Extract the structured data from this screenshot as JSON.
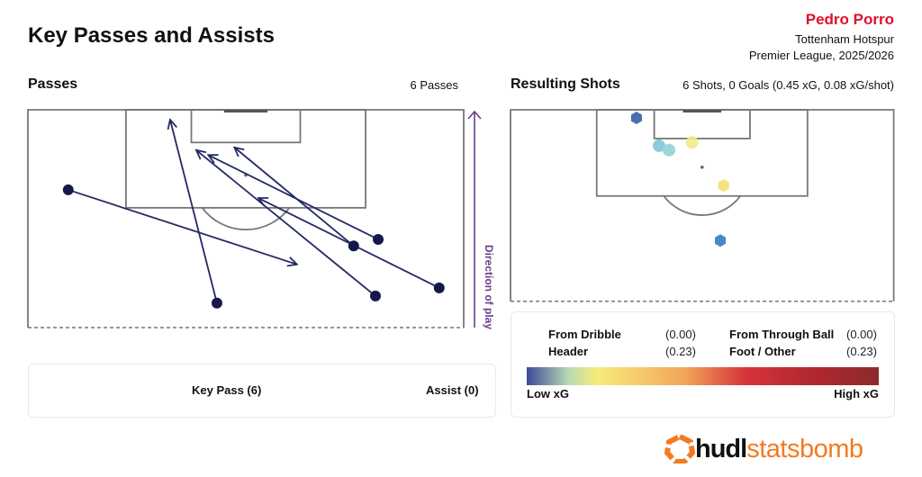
{
  "header": {
    "title": "Key Passes and Assists",
    "player": "Pedro Porro",
    "team": "Tottenham Hotspur",
    "competition": "Premier League, 2025/2026"
  },
  "passes_panel": {
    "title": "Passes",
    "count_label": "6 Passes",
    "direction_label": "Direction of play"
  },
  "shots_panel": {
    "title": "Resulting Shots",
    "summary": "6 Shots, 0 Goals (0.45 xG, 0.08 xG/shot)"
  },
  "pass_legend": {
    "key_pass": "Key Pass (6)",
    "assist": "Assist (0)"
  },
  "shot_legend": {
    "items": [
      {
        "label": "From Dribble",
        "value": "(0.00)",
        "icon": "diamond-icon"
      },
      {
        "label": "From Through Ball",
        "value": "(0.00)",
        "icon": "triangle-icon"
      },
      {
        "label": "Header",
        "value": "(0.23)",
        "icon": "circle-icon"
      },
      {
        "label": "Foot / Other",
        "value": "(0.23)",
        "icon": "hexagon-icon"
      }
    ],
    "low": "Low xG",
    "high": "High xG"
  },
  "logo": {
    "bold": "hudl",
    "light": "statsbomb"
  },
  "colors": {
    "key_pass": "#232a63",
    "assist": "#c8383c",
    "accent": "#e0102a",
    "direction": "#6b3f8a",
    "logo": "#f47a20"
  },
  "chart_data": [
    {
      "type": "scatter",
      "title": "Passes",
      "coordinate_system": "pitch 120x80, attacking top",
      "passes": [
        {
          "type": "key_pass",
          "start": [
            95.0,
            59.8
          ],
          "end": [
            113.1,
            37.9
          ]
        },
        {
          "type": "key_pass",
          "start": [
            96.2,
            64.3
          ],
          "end": [
            111.7,
            33.1
          ]
        },
        {
          "type": "key_pass",
          "start": [
            87.3,
            75.5
          ],
          "end": [
            103.8,
            42.3
          ]
        },
        {
          "type": "key_pass",
          "start": [
            85.8,
            63.8
          ],
          "end": [
            112.6,
            30.9
          ]
        },
        {
          "type": "key_pass",
          "start": [
            84.5,
            34.7
          ],
          "end": [
            118.2,
            26.1
          ]
        },
        {
          "type": "key_pass",
          "start": [
            105.3,
            7.4
          ],
          "end": [
            91.6,
            49.4
          ]
        }
      ]
    },
    {
      "type": "scatter",
      "title": "Resulting Shots",
      "coordinate_system": "pitch 120x80, attacking top",
      "shots": [
        {
          "x": 118.3,
          "y": 26.3,
          "body": "foot",
          "color": "#4a6fb0"
        },
        {
          "x": 112.5,
          "y": 31.0,
          "body": "header",
          "color": "#7ec8d8"
        },
        {
          "x": 111.6,
          "y": 33.1,
          "body": "header",
          "color": "#92d2d6"
        },
        {
          "x": 113.2,
          "y": 37.9,
          "body": "header",
          "color": "#f3e98a"
        },
        {
          "x": 104.2,
          "y": 44.5,
          "body": "foot",
          "color": "#f7e27a"
        },
        {
          "x": 92.7,
          "y": 43.8,
          "body": "foot",
          "color": "#4d86c6"
        }
      ]
    }
  ]
}
